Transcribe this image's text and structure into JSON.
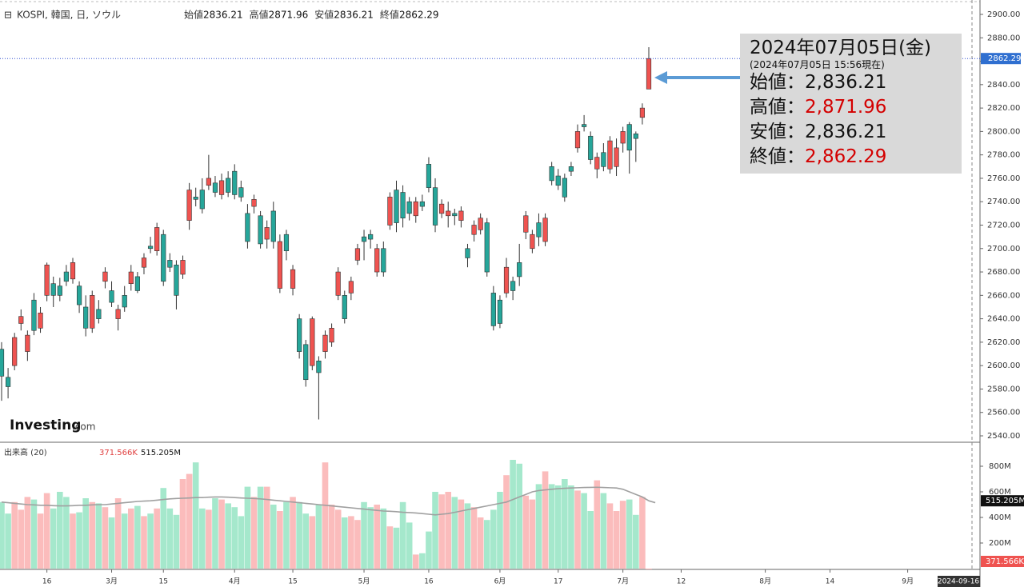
{
  "chart_data": {
    "type": "candlestick",
    "symbol": "KOSPI, 韓国, 日, ソウル",
    "ohlc_names": [
      "始値",
      "高値",
      "安値",
      "終値"
    ],
    "up_color": "#ef5350",
    "down_color": "#26a69a",
    "vol_up_color": "#fbbcbc",
    "vol_down_color": "#a5e8cc",
    "ma_color": "#a0a0a0",
    "ohlc": [
      [
        2614,
        2620,
        2570,
        2591
      ],
      [
        2590,
        2598,
        2572,
        2582
      ],
      [
        2600,
        2628,
        2596,
        2624
      ],
      [
        2636,
        2648,
        2630,
        2642
      ],
      [
        2612,
        2630,
        2604,
        2626
      ],
      [
        2656,
        2662,
        2626,
        2630
      ],
      [
        2632,
        2650,
        2628,
        2645
      ],
      [
        2660,
        2688,
        2655,
        2686
      ],
      [
        2670,
        2676,
        2650,
        2660
      ],
      [
        2668,
        2675,
        2655,
        2660
      ],
      [
        2680,
        2686,
        2668,
        2672
      ],
      [
        2674,
        2692,
        2670,
        2688
      ],
      [
        2668,
        2672,
        2645,
        2652
      ],
      [
        2650,
        2660,
        2625,
        2632
      ],
      [
        2632,
        2664,
        2628,
        2660
      ],
      [
        2648,
        2656,
        2636,
        2640
      ],
      [
        2672,
        2684,
        2666,
        2680
      ],
      [
        2664,
        2672,
        2650,
        2654
      ],
      [
        2640,
        2652,
        2630,
        2648
      ],
      [
        2660,
        2668,
        2646,
        2650
      ],
      [
        2670,
        2686,
        2664,
        2680
      ],
      [
        2676,
        2680,
        2662,
        2664
      ],
      [
        2684,
        2696,
        2678,
        2692
      ],
      [
        2702,
        2710,
        2696,
        2700
      ],
      [
        2698,
        2722,
        2694,
        2718
      ],
      [
        2712,
        2716,
        2668,
        2672
      ],
      [
        2690,
        2696,
        2680,
        2684
      ],
      [
        2686,
        2690,
        2648,
        2660
      ],
      [
        2678,
        2694,
        2674,
        2690
      ],
      [
        2724,
        2756,
        2716,
        2750
      ],
      [
        2744,
        2752,
        2736,
        2742
      ],
      [
        2750,
        2760,
        2730,
        2734
      ],
      [
        2754,
        2780,
        2750,
        2760
      ],
      [
        2756,
        2762,
        2744,
        2748
      ],
      [
        2746,
        2764,
        2742,
        2758
      ],
      [
        2760,
        2766,
        2744,
        2748
      ],
      [
        2766,
        2772,
        2742,
        2746
      ],
      [
        2752,
        2758,
        2740,
        2744
      ],
      [
        2730,
        2738,
        2700,
        2706
      ],
      [
        2736,
        2746,
        2730,
        2742
      ],
      [
        2728,
        2732,
        2700,
        2704
      ],
      [
        2708,
        2724,
        2700,
        2718
      ],
      [
        2732,
        2740,
        2700,
        2706
      ],
      [
        2666,
        2712,
        2662,
        2706
      ],
      [
        2712,
        2716,
        2690,
        2698
      ],
      [
        2666,
        2686,
        2660,
        2682
      ],
      [
        2640,
        2644,
        2606,
        2612
      ],
      [
        2618,
        2622,
        2582,
        2588
      ],
      [
        2600,
        2642,
        2596,
        2640
      ],
      [
        2604,
        2608,
        2554,
        2594
      ],
      [
        2612,
        2630,
        2606,
        2626
      ],
      [
        2620,
        2636,
        2616,
        2632
      ],
      [
        2660,
        2684,
        2656,
        2680
      ],
      [
        2660,
        2664,
        2636,
        2640
      ],
      [
        2662,
        2676,
        2656,
        2672
      ],
      [
        2690,
        2704,
        2686,
        2700
      ],
      [
        2710,
        2716,
        2690,
        2706
      ],
      [
        2712,
        2716,
        2700,
        2708
      ],
      [
        2680,
        2704,
        2676,
        2700
      ],
      [
        2700,
        2706,
        2676,
        2680
      ],
      [
        2720,
        2748,
        2716,
        2744
      ],
      [
        2750,
        2758,
        2714,
        2722
      ],
      [
        2748,
        2754,
        2718,
        2726
      ],
      [
        2740,
        2744,
        2724,
        2730
      ],
      [
        2728,
        2744,
        2722,
        2740
      ],
      [
        2740,
        2746,
        2732,
        2736
      ],
      [
        2772,
        2778,
        2748,
        2752
      ],
      [
        2752,
        2760,
        2714,
        2720
      ],
      [
        2730,
        2742,
        2726,
        2738
      ],
      [
        2728,
        2740,
        2718,
        2732
      ],
      [
        2730,
        2734,
        2720,
        2728
      ],
      [
        2724,
        2736,
        2718,
        2732
      ],
      [
        2700,
        2704,
        2684,
        2692
      ],
      [
        2712,
        2724,
        2706,
        2720
      ],
      [
        2716,
        2730,
        2712,
        2726
      ],
      [
        2722,
        2726,
        2676,
        2680
      ],
      [
        2662,
        2668,
        2630,
        2634
      ],
      [
        2656,
        2660,
        2632,
        2636
      ],
      [
        2662,
        2692,
        2658,
        2684
      ],
      [
        2672,
        2676,
        2656,
        2664
      ],
      [
        2688,
        2704,
        2668,
        2676
      ],
      [
        2714,
        2732,
        2708,
        2728
      ],
      [
        2700,
        2716,
        2696,
        2712
      ],
      [
        2722,
        2730,
        2702,
        2710
      ],
      [
        2706,
        2730,
        2702,
        2726
      ],
      [
        2770,
        2774,
        2754,
        2758
      ],
      [
        2762,
        2768,
        2750,
        2754
      ],
      [
        2760,
        2764,
        2740,
        2744
      ],
      [
        2770,
        2774,
        2762,
        2766
      ],
      [
        2786,
        2806,
        2782,
        2800
      ],
      [
        2806,
        2814,
        2800,
        2804
      ],
      [
        2796,
        2800,
        2772,
        2776
      ],
      [
        2768,
        2782,
        2760,
        2778
      ],
      [
        2782,
        2790,
        2766,
        2770
      ],
      [
        2768,
        2796,
        2764,
        2792
      ],
      [
        2770,
        2794,
        2762,
        2786
      ],
      [
        2790,
        2804,
        2782,
        2800
      ],
      [
        2806,
        2808,
        2764,
        2784
      ],
      [
        2798,
        2800,
        2774,
        2794
      ],
      [
        2812,
        2824,
        2806,
        2820
      ],
      [
        2836.21,
        2871.96,
        2836.21,
        2862.29
      ]
    ],
    "ylim": [
      2540,
      2900
    ],
    "yticks": [
      {
        "value": 2540,
        "label": "2540.00"
      },
      {
        "value": 2560,
        "label": "2560.00"
      },
      {
        "value": 2580,
        "label": "2580.00"
      },
      {
        "value": 2600,
        "label": "2600.00"
      },
      {
        "value": 2620,
        "label": "2620.00"
      },
      {
        "value": 2640,
        "label": "2640.00"
      },
      {
        "value": 2660,
        "label": "2660.00"
      },
      {
        "value": 2680,
        "label": "2680.00"
      },
      {
        "value": 2700,
        "label": "2700.00"
      },
      {
        "value": 2720,
        "label": "2720.00"
      },
      {
        "value": 2740,
        "label": "2740.00"
      },
      {
        "value": 2760,
        "label": "2760.00"
      },
      {
        "value": 2780,
        "label": "2780.00"
      },
      {
        "value": 2800,
        "label": "2800.00"
      },
      {
        "value": 2820,
        "label": "2820.00"
      },
      {
        "value": 2840,
        "label": "2840.00"
      },
      {
        "value": 2860,
        "label": "2860.00"
      },
      {
        "value": 2880,
        "label": "2880.00"
      },
      {
        "value": 2900,
        "label": "2900.00"
      }
    ],
    "last_price_label": "2862.29",
    "xlim": [
      0,
      151
    ],
    "xticks": [
      {
        "value": 7,
        "label": "16"
      },
      {
        "value": 17,
        "label": "3月"
      },
      {
        "value": 25,
        "label": "15"
      },
      {
        "value": 36,
        "label": "4月"
      },
      {
        "value": 45,
        "label": "15"
      },
      {
        "value": 56,
        "label": "5月"
      },
      {
        "value": 66,
        "label": "16"
      },
      {
        "value": 77,
        "label": "6月"
      },
      {
        "value": 86,
        "label": "17"
      },
      {
        "value": 96,
        "label": "7月"
      },
      {
        "value": 105,
        "label": "12"
      },
      {
        "value": 118,
        "label": "8月"
      },
      {
        "value": 128,
        "label": "14"
      },
      {
        "value": 140,
        "label": "9月"
      }
    ],
    "cursor_date": "2024-09-16",
    "volume_title": "出来高 (20)",
    "volume": [
      520,
      430,
      520,
      460,
      560,
      540,
      430,
      590,
      470,
      600,
      560,
      430,
      440,
      550,
      520,
      510,
      480,
      400,
      550,
      430,
      470,
      490,
      410,
      430,
      470,
      630,
      470,
      420,
      700,
      740,
      830,
      470,
      460,
      550,
      540,
      510,
      480,
      410,
      640,
      560,
      640,
      640,
      500,
      450,
      520,
      560,
      520,
      430,
      410,
      500,
      830,
      500,
      460,
      400,
      410,
      380,
      520,
      480,
      500,
      470,
      330,
      320,
      520,
      360,
      110,
      120,
      290,
      600,
      580,
      600,
      560,
      540,
      510,
      480,
      400,
      380,
      460,
      600,
      730,
      850,
      820,
      570,
      540,
      660,
      760,
      660,
      650,
      700,
      650,
      610,
      590,
      450,
      690,
      590,
      510,
      450,
      530,
      540,
      420,
      560,
      0.371566
    ],
    "volume_ma": [
      520,
      515,
      510,
      505,
      500,
      498,
      495,
      495,
      492,
      490,
      490,
      492,
      495,
      495,
      498,
      500,
      500,
      505,
      510,
      515,
      520,
      525,
      528,
      530,
      535,
      540,
      545,
      548,
      550,
      552,
      555,
      555,
      558,
      560,
      560,
      558,
      555,
      552,
      550,
      548,
      545,
      540,
      535,
      530,
      525,
      520,
      515,
      510,
      505,
      500,
      495,
      490,
      485,
      480,
      475,
      470,
      465,
      460,
      455,
      450,
      448,
      445,
      440,
      438,
      435,
      430,
      425,
      420,
      425,
      430,
      440,
      450,
      460,
      470,
      480,
      490,
      500,
      510,
      520,
      540,
      560,
      580,
      600,
      610,
      615,
      620,
      625,
      628,
      630,
      632,
      634,
      635,
      636,
      634,
      632,
      630,
      620,
      600,
      580,
      560,
      530,
      515.205
    ],
    "volume_last_label": "371.566K",
    "volume_ma_label": "515.205M",
    "vlim": [
      0,
      900
    ],
    "vticks": [
      {
        "value": 200,
        "label": "200M"
      },
      {
        "value": 400,
        "label": "400M"
      },
      {
        "value": 600,
        "label": "600M"
      },
      {
        "value": 800,
        "label": "800M"
      }
    ],
    "logo": "Investing",
    "logo_suffix": ".com",
    "info": {
      "date": "2024年07月05日(金)",
      "time": "(2024年07月05日 15:56現在)",
      "rows": [
        {
          "label": "始値：",
          "value": "2,836.21"
        },
        {
          "label": "高値：",
          "value": "2,871.96"
        },
        {
          "label": "安値：",
          "value": "2,836.21"
        },
        {
          "label": "終値：",
          "value": "2,862.29"
        }
      ]
    }
  }
}
